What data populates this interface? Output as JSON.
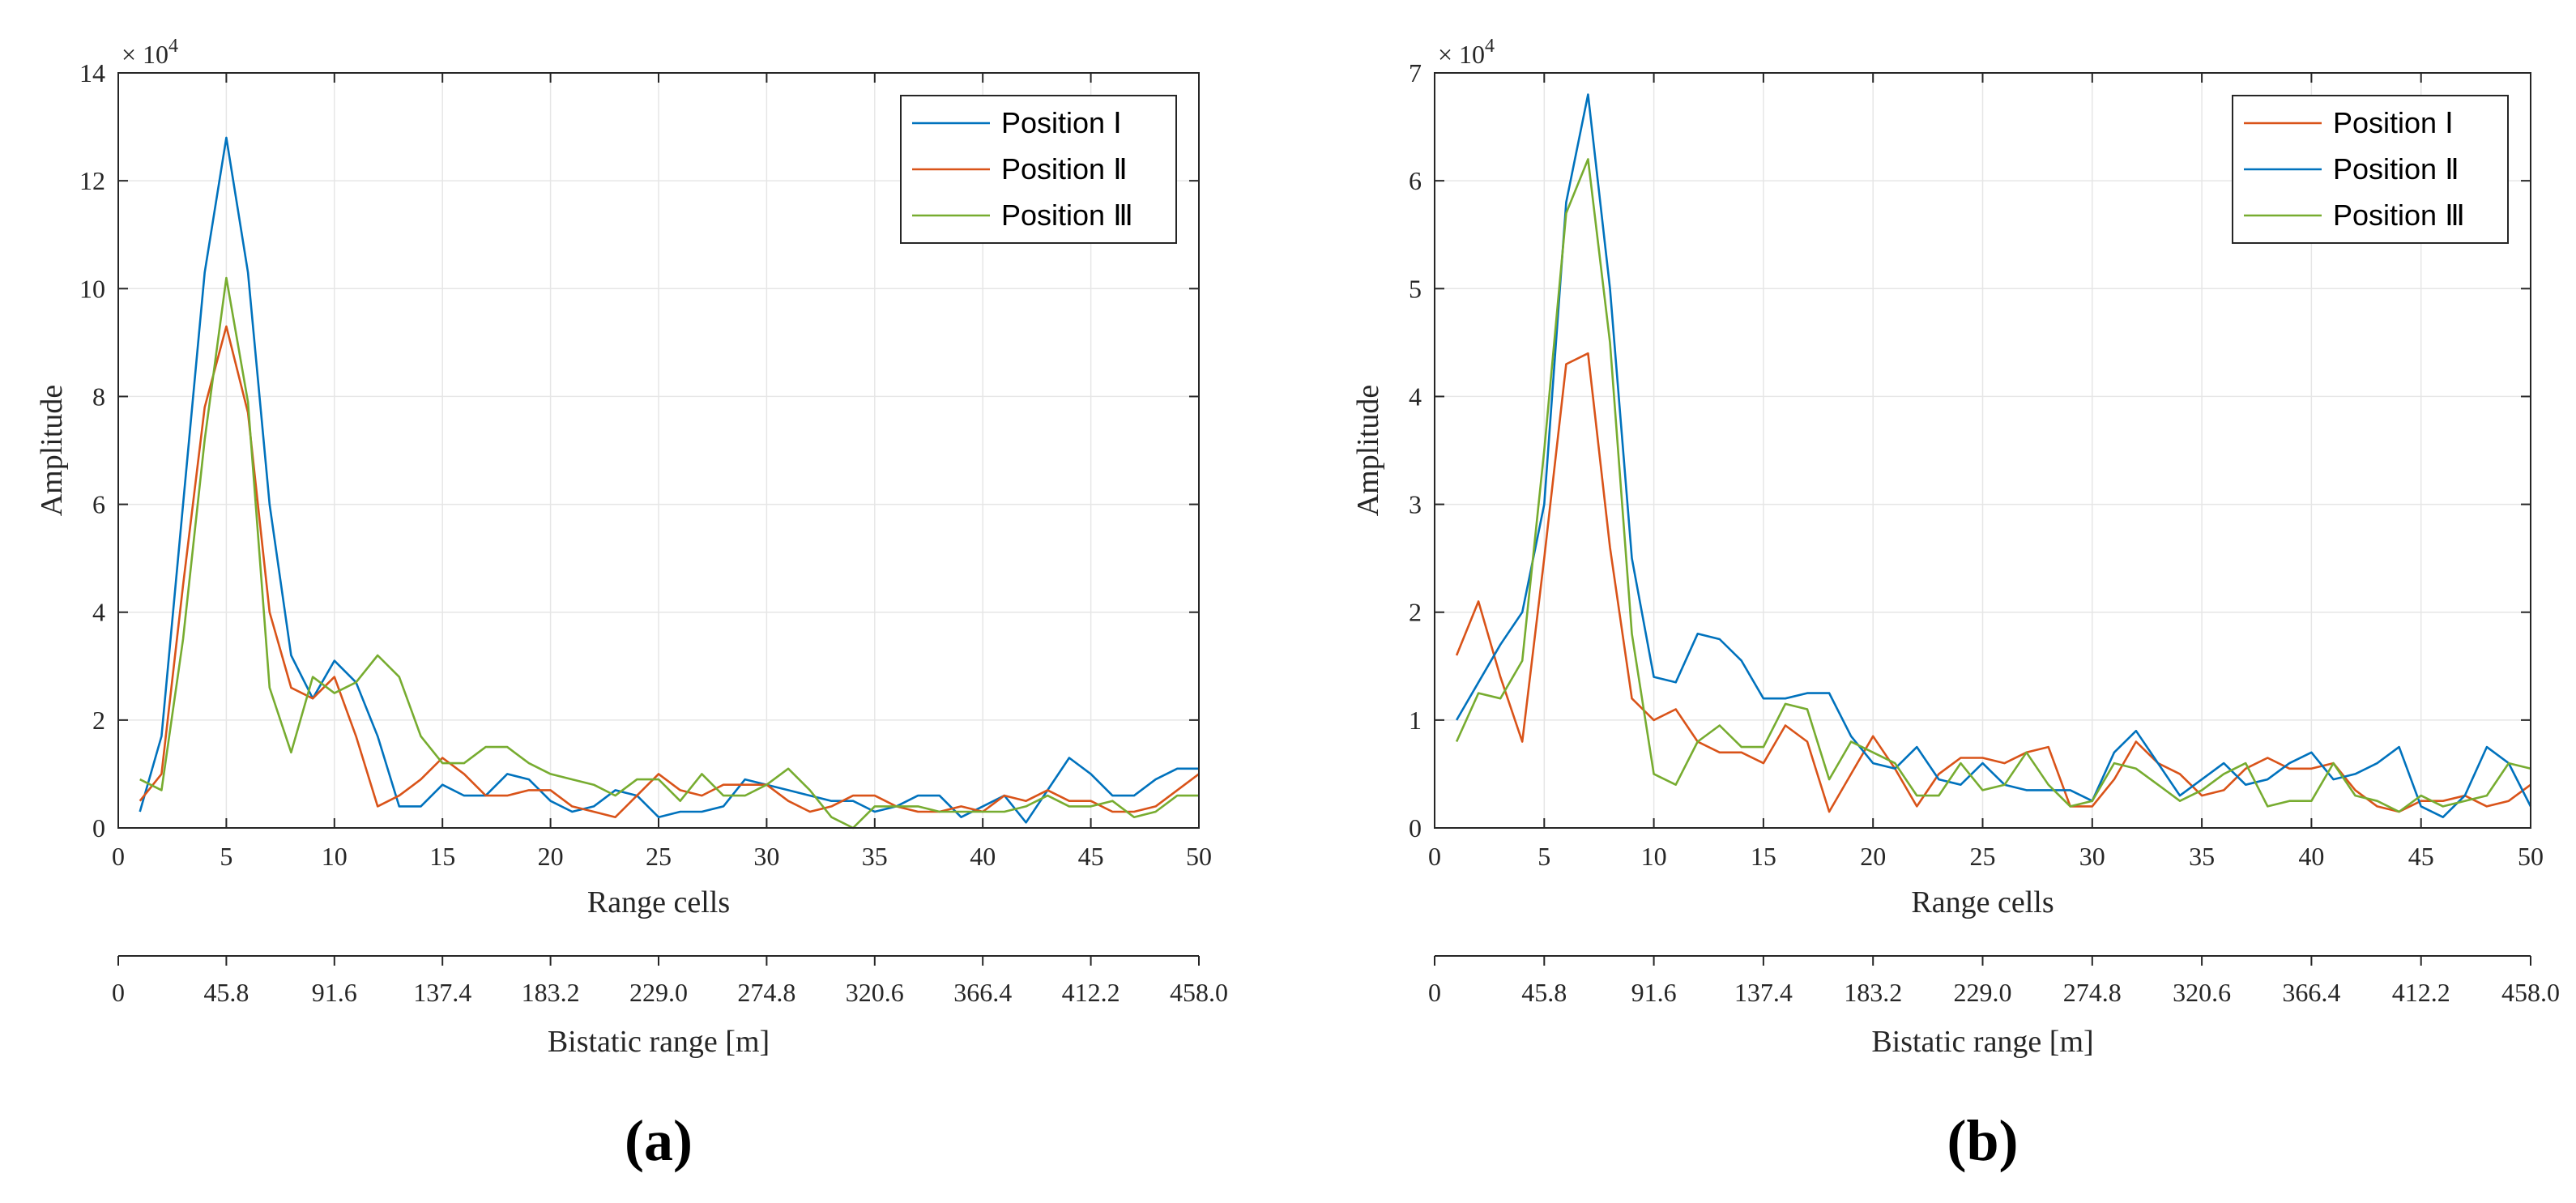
{
  "colors": {
    "blue": "#0072BD",
    "orange": "#D95319",
    "green": "#77AC30",
    "axis": "#262626",
    "grid": "#e6e6e6"
  },
  "chart_data": [
    {
      "type": "line",
      "panel_label": "(a)",
      "xlabel": "Range cells",
      "ylabel": "Amplitude",
      "exponent_label": "× 10^4",
      "exp_base": "× 10",
      "exp_power": "4",
      "xlim": [
        0,
        50
      ],
      "ylim": [
        0,
        14
      ],
      "xticks": [
        0,
        5,
        10,
        15,
        20,
        25,
        30,
        35,
        40,
        45,
        50
      ],
      "yticks": [
        0,
        2,
        4,
        6,
        8,
        10,
        12,
        14
      ],
      "secondary_xlabel": "Bistatic range [m]",
      "secondary_ticks": [
        "0",
        "45.8",
        "91.6",
        "137.4",
        "183.2",
        "229.0",
        "274.8",
        "320.6",
        "366.4",
        "412.2",
        "458.0"
      ],
      "legend_position": "top-right",
      "grid": true,
      "x": [
        1,
        2,
        3,
        4,
        5,
        6,
        7,
        8,
        9,
        10,
        11,
        12,
        13,
        14,
        15,
        16,
        17,
        18,
        19,
        20,
        21,
        22,
        23,
        24,
        25,
        26,
        27,
        28,
        29,
        30,
        31,
        32,
        33,
        34,
        35,
        36,
        37,
        38,
        39,
        40,
        41,
        42,
        43,
        44,
        45,
        46,
        47,
        48,
        49,
        50
      ],
      "series": [
        {
          "name": "Position Ⅰ",
          "color": "#0072BD",
          "values": [
            0.3,
            1.7,
            6.0,
            10.3,
            12.8,
            10.3,
            6.0,
            3.2,
            2.4,
            3.1,
            2.7,
            1.7,
            0.4,
            0.4,
            0.8,
            0.6,
            0.6,
            1.0,
            0.9,
            0.5,
            0.3,
            0.4,
            0.7,
            0.6,
            0.2,
            0.3,
            0.3,
            0.4,
            0.9,
            0.8,
            0.7,
            0.6,
            0.5,
            0.5,
            0.3,
            0.4,
            0.6,
            0.6,
            0.2,
            0.4,
            0.6,
            0.1,
            0.7,
            1.3,
            1.0,
            0.6,
            0.6,
            0.9,
            1.1,
            1.1
          ]
        },
        {
          "name": "Position Ⅱ",
          "color": "#D95319",
          "values": [
            0.5,
            1.0,
            4.5,
            7.8,
            9.3,
            7.7,
            4.0,
            2.6,
            2.4,
            2.8,
            1.7,
            0.4,
            0.6,
            0.9,
            1.3,
            1.0,
            0.6,
            0.6,
            0.7,
            0.7,
            0.4,
            0.3,
            0.2,
            0.6,
            1.0,
            0.7,
            0.6,
            0.8,
            0.8,
            0.8,
            0.5,
            0.3,
            0.4,
            0.6,
            0.6,
            0.4,
            0.3,
            0.3,
            0.4,
            0.3,
            0.6,
            0.5,
            0.7,
            0.5,
            0.5,
            0.3,
            0.3,
            0.4,
            0.7,
            1.0
          ]
        },
        {
          "name": "Position Ⅲ",
          "color": "#77AC30",
          "values": [
            0.9,
            0.7,
            3.5,
            7.2,
            10.2,
            7.9,
            2.6,
            1.4,
            2.8,
            2.5,
            2.7,
            3.2,
            2.8,
            1.7,
            1.2,
            1.2,
            1.5,
            1.5,
            1.2,
            1.0,
            0.9,
            0.8,
            0.6,
            0.9,
            0.9,
            0.5,
            1.0,
            0.6,
            0.6,
            0.8,
            1.1,
            0.7,
            0.2,
            0.0,
            0.4,
            0.4,
            0.4,
            0.3,
            0.3,
            0.3,
            0.3,
            0.4,
            0.6,
            0.4,
            0.4,
            0.5,
            0.2,
            0.3,
            0.6,
            0.6
          ]
        }
      ]
    },
    {
      "type": "line",
      "panel_label": "(b)",
      "xlabel": "Range cells",
      "ylabel": "Amplitude",
      "exponent_label": "× 10^4",
      "exp_base": "× 10",
      "exp_power": "4",
      "xlim": [
        0,
        50
      ],
      "ylim": [
        0,
        7
      ],
      "xticks": [
        0,
        5,
        10,
        15,
        20,
        25,
        30,
        35,
        40,
        45,
        50
      ],
      "yticks": [
        0,
        1,
        2,
        3,
        4,
        5,
        6,
        7
      ],
      "secondary_xlabel": "Bistatic range [m]",
      "secondary_ticks": [
        "0",
        "45.8",
        "91.6",
        "137.4",
        "183.2",
        "229.0",
        "274.8",
        "320.6",
        "366.4",
        "412.2",
        "458.0"
      ],
      "legend_position": "top-right",
      "grid": true,
      "x": [
        1,
        2,
        3,
        4,
        5,
        6,
        7,
        8,
        9,
        10,
        11,
        12,
        13,
        14,
        15,
        16,
        17,
        18,
        19,
        20,
        21,
        22,
        23,
        24,
        25,
        26,
        27,
        28,
        29,
        30,
        31,
        32,
        33,
        34,
        35,
        36,
        37,
        38,
        39,
        40,
        41,
        42,
        43,
        44,
        45,
        46,
        47,
        48,
        49,
        50
      ],
      "series": [
        {
          "name": "Position Ⅰ",
          "color": "#D95319",
          "values": [
            1.6,
            2.1,
            1.4,
            0.8,
            2.5,
            4.3,
            4.4,
            2.6,
            1.2,
            1.0,
            1.1,
            0.8,
            0.7,
            0.7,
            0.6,
            0.95,
            0.8,
            0.15,
            0.5,
            0.85,
            0.55,
            0.2,
            0.5,
            0.65,
            0.65,
            0.6,
            0.7,
            0.75,
            0.2,
            0.2,
            0.45,
            0.8,
            0.6,
            0.5,
            0.3,
            0.35,
            0.55,
            0.65,
            0.55,
            0.55,
            0.6,
            0.35,
            0.2,
            0.15,
            0.25,
            0.25,
            0.3,
            0.2,
            0.25,
            0.4
          ]
        },
        {
          "name": "Position Ⅱ",
          "color": "#0072BD",
          "values": [
            1.0,
            1.35,
            1.7,
            2.0,
            3.0,
            5.8,
            6.8,
            5.0,
            2.5,
            1.4,
            1.35,
            1.8,
            1.75,
            1.55,
            1.2,
            1.2,
            1.25,
            1.25,
            0.85,
            0.6,
            0.55,
            0.75,
            0.45,
            0.4,
            0.6,
            0.4,
            0.35,
            0.35,
            0.35,
            0.25,
            0.7,
            0.9,
            0.6,
            0.3,
            0.45,
            0.6,
            0.4,
            0.45,
            0.6,
            0.7,
            0.45,
            0.5,
            0.6,
            0.75,
            0.2,
            0.1,
            0.3,
            0.75,
            0.6,
            0.2
          ]
        },
        {
          "name": "Position Ⅲ",
          "color": "#77AC30",
          "values": [
            0.8,
            1.25,
            1.2,
            1.55,
            3.5,
            5.7,
            6.2,
            4.5,
            1.8,
            0.5,
            0.4,
            0.8,
            0.95,
            0.75,
            0.75,
            1.15,
            1.1,
            0.45,
            0.8,
            0.7,
            0.6,
            0.3,
            0.3,
            0.6,
            0.35,
            0.4,
            0.7,
            0.4,
            0.2,
            0.25,
            0.6,
            0.55,
            0.4,
            0.25,
            0.35,
            0.5,
            0.6,
            0.2,
            0.25,
            0.25,
            0.6,
            0.3,
            0.25,
            0.15,
            0.3,
            0.2,
            0.25,
            0.3,
            0.6,
            0.55
          ]
        }
      ]
    }
  ]
}
